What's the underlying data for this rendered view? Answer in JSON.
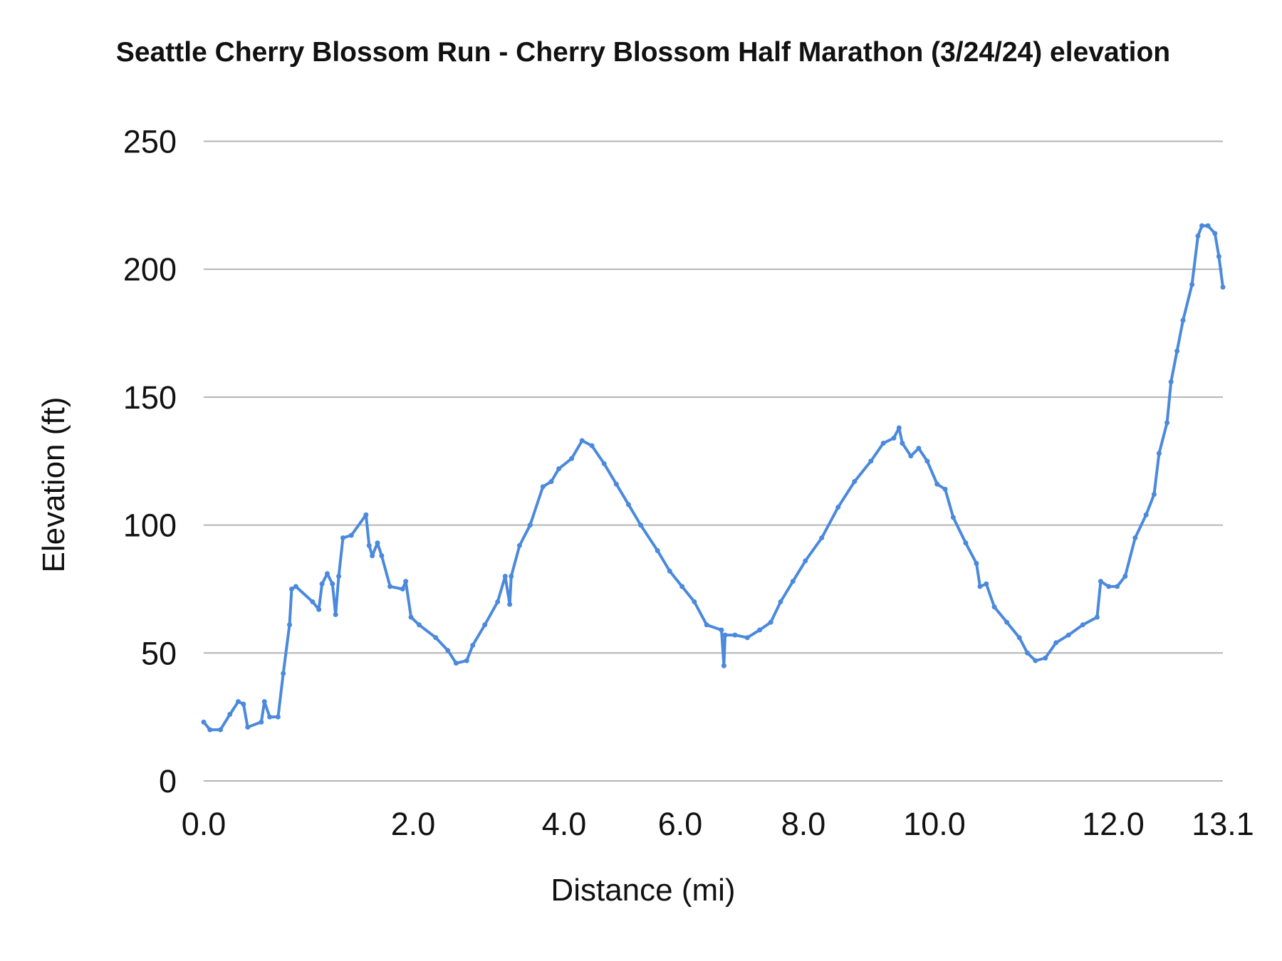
{
  "chart_data": {
    "type": "line",
    "title": "Seattle Cherry Blossom Run - Cherry Blossom Half Marathon (3/24/24) elevation",
    "xlabel": "Distance (mi)",
    "ylabel": "Elevation (ft)",
    "ylim": [
      0,
      250
    ],
    "yticks": [
      0,
      50,
      100,
      150,
      200,
      250
    ],
    "xticks": [
      "0.0",
      "2.0",
      "4.0",
      "6.0",
      "8.0",
      "10.0",
      "12.0",
      "13.1"
    ],
    "grid": "horizontal",
    "markers": true,
    "color": "#4a89dc",
    "gridColor": "#b3b3b3",
    "x": [
      0,
      0.06,
      0.16,
      0.25,
      0.33,
      0.38,
      0.42,
      0.55,
      0.58,
      0.63,
      0.71,
      0.76,
      0.82,
      0.84,
      0.88,
      1.04,
      1.1,
      1.13,
      1.18,
      1.23,
      1.26,
      1.29,
      1.33,
      1.41,
      1.55,
      1.58,
      1.61,
      1.66,
      1.7,
      1.78,
      1.9,
      1.93,
      1.98,
      2.08,
      2.3,
      2.46,
      2.57,
      2.71,
      2.79,
      2.95,
      3.12,
      3.22,
      3.28,
      3.3,
      3.41,
      3.55,
      3.72,
      3.83,
      3.93,
      4.13,
      4.31,
      4.48,
      4.69,
      4.9,
      5.11,
      5.32,
      5.61,
      5.82,
      6.03,
      6.23,
      6.43,
      6.67,
      6.71,
      6.73,
      6.89,
      7.09,
      7.29,
      7.47,
      7.63,
      7.83,
      8.03,
      8.28,
      8.53,
      8.78,
      9.03,
      9.22,
      9.38,
      9.46,
      9.51,
      9.64,
      9.76,
      9.89,
      10.03,
      10.12,
      10.21,
      10.35,
      10.47,
      10.51,
      10.58,
      10.67,
      10.81,
      10.95,
      11.04,
      11.13,
      11.24,
      11.36,
      11.5,
      11.66,
      11.82,
      11.86,
      11.95,
      12.04,
      12.12,
      12.22,
      12.33,
      12.41,
      12.46,
      12.54,
      12.58,
      12.64,
      12.7,
      12.79,
      12.85,
      12.89,
      12.95,
      13.02,
      13.06,
      13.1
    ],
    "y": [
      23,
      20,
      20,
      26,
      31,
      30,
      21,
      23,
      31,
      25,
      25,
      42,
      61,
      75,
      76,
      70,
      67,
      77,
      81,
      77,
      65,
      80,
      95,
      96,
      104,
      92,
      88,
      93,
      88,
      76,
      75,
      78,
      64,
      61,
      56,
      51,
      46,
      47,
      53,
      61,
      70,
      80,
      69,
      80,
      92,
      100,
      115,
      117,
      122,
      126,
      133,
      131,
      124,
      116,
      108,
      100,
      90,
      82,
      76,
      70,
      61,
      59,
      45,
      57,
      57,
      56,
      59,
      62,
      70,
      78,
      86,
      95,
      107,
      117,
      125,
      132,
      134,
      138,
      132,
      127,
      130,
      125,
      116,
      114,
      103,
      93,
      85,
      76,
      77,
      68,
      62,
      56,
      50,
      47,
      48,
      54,
      57,
      61,
      64,
      78,
      76,
      76,
      80,
      95,
      104,
      112,
      128,
      140,
      156,
      168,
      180,
      194,
      213,
      217,
      217,
      214,
      205,
      193
    ]
  }
}
